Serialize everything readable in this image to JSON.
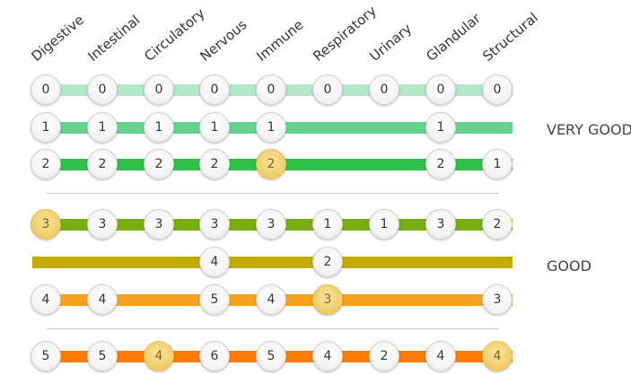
{
  "systems": [
    "Digestive",
    "Intestinal",
    "Circulatory",
    "Nervous",
    "Immune",
    "Respiratory",
    "Urinary",
    "Glandular",
    "Structural"
  ],
  "labels": {
    "very_good": "VERY GOOD",
    "good": "GOOD"
  },
  "colors": {
    "row0": "#b3e8cb",
    "row1": "#66d28f",
    "row2": "#2fbf4a",
    "row3": "#78ae12",
    "row4": "#c1ac00",
    "row5": "#f7a21c",
    "row6": "#fc7c07",
    "highlight": "#f3d06e"
  },
  "rows": [
    {
      "values": [
        "0",
        "0",
        "0",
        "0",
        "0",
        "0",
        "0",
        "0",
        "0"
      ],
      "highlight": []
    },
    {
      "values": [
        "1",
        "1",
        "1",
        "1",
        "1",
        null,
        null,
        "1",
        null
      ],
      "highlight": []
    },
    {
      "values": [
        "2",
        "2",
        "2",
        "2",
        "2",
        null,
        null,
        "2",
        "1"
      ],
      "highlight": [
        4
      ]
    },
    {
      "values": [
        "3",
        "3",
        "3",
        "3",
        "3",
        "1",
        "1",
        "3",
        "2"
      ],
      "highlight": [
        0
      ]
    },
    {
      "values": [
        null,
        null,
        null,
        "4",
        null,
        "2",
        null,
        null,
        null
      ],
      "highlight": []
    },
    {
      "values": [
        "4",
        "4",
        null,
        "5",
        "4",
        "3",
        null,
        null,
        "3"
      ],
      "highlight": [
        5
      ]
    },
    {
      "values": [
        "5",
        "5",
        "4",
        "6",
        "5",
        "4",
        "2",
        "4",
        "4"
      ],
      "highlight": [
        2,
        8
      ]
    }
  ]
}
